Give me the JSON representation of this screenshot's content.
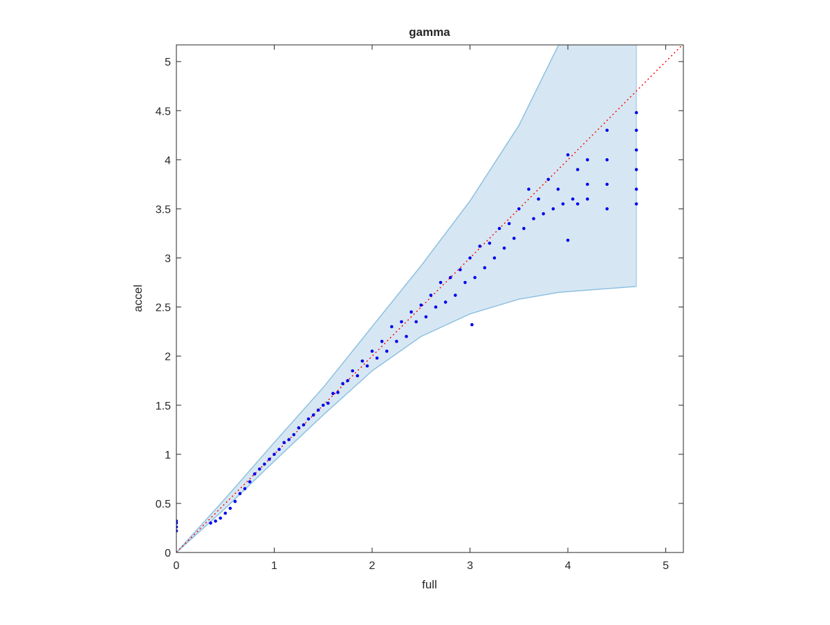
{
  "chart_data": {
    "type": "scatter",
    "title": "gamma",
    "x_label": "full",
    "y_label": "accel",
    "xlim": [
      0,
      5.18
    ],
    "ylim": [
      0,
      5.17
    ],
    "xticks": [
      0,
      1,
      2,
      3,
      4,
      5
    ],
    "yticks": [
      0,
      0.5,
      1,
      1.5,
      2,
      2.5,
      3,
      3.5,
      4,
      4.5,
      5
    ],
    "grid": false,
    "band": {
      "color": "#d6e7f3",
      "edge_color": "#8ec0e0",
      "x": [
        0,
        0.5,
        1,
        1.5,
        2,
        2.5,
        3,
        3.5,
        3.91,
        4.7
      ],
      "upper": [
        0,
        0.55,
        1.12,
        1.68,
        2.3,
        2.92,
        3.58,
        4.35,
        5.18,
        5.18
      ],
      "lower": [
        0,
        0.45,
        0.93,
        1.4,
        1.85,
        2.2,
        2.43,
        2.58,
        2.65,
        2.71
      ]
    },
    "reference_line": {
      "color": "#ff0000",
      "x": [
        0,
        5.18
      ],
      "y": [
        0,
        5.18
      ]
    },
    "series": [
      {
        "color": "#0000ee",
        "x": [
          0,
          0,
          0,
          0,
          0.35,
          0.4,
          0.45,
          0.5,
          0.55,
          0.6,
          0.65,
          0.7,
          0.75,
          0.8,
          0.85,
          0.9,
          0.95,
          1.0,
          1.05,
          1.1,
          1.15,
          1.2,
          1.25,
          1.3,
          1.35,
          1.4,
          1.45,
          1.5,
          1.55,
          1.6,
          1.65,
          1.7,
          1.75,
          1.8,
          1.85,
          1.9,
          1.95,
          2.0,
          2.05,
          2.1,
          2.15,
          2.2,
          2.25,
          2.3,
          2.35,
          2.4,
          2.45,
          2.5,
          2.55,
          2.6,
          2.65,
          2.7,
          2.75,
          2.8,
          2.85,
          2.9,
          2.95,
          3.0,
          3.02,
          3.05,
          3.1,
          3.15,
          3.2,
          3.25,
          3.3,
          3.35,
          3.4,
          3.45,
          3.5,
          3.55,
          3.6,
          3.65,
          3.7,
          3.75,
          3.8,
          3.85,
          3.9,
          3.95,
          4.0,
          4.0,
          4.05,
          4.1,
          4.1,
          4.2,
          4.2,
          4.2,
          4.4,
          4.4,
          4.4,
          4.4,
          4.7,
          4.7,
          4.7,
          4.7,
          4.7,
          4.7
        ],
        "y": [
          0.22,
          0.26,
          0.3,
          0.32,
          0.3,
          0.32,
          0.35,
          0.4,
          0.45,
          0.52,
          0.6,
          0.65,
          0.72,
          0.8,
          0.85,
          0.9,
          0.95,
          1.0,
          1.05,
          1.12,
          1.15,
          1.2,
          1.27,
          1.3,
          1.36,
          1.4,
          1.45,
          1.5,
          1.52,
          1.62,
          1.63,
          1.72,
          1.75,
          1.85,
          1.8,
          1.95,
          1.9,
          2.05,
          1.98,
          2.15,
          2.05,
          2.3,
          2.15,
          2.35,
          2.2,
          2.45,
          2.35,
          2.52,
          2.4,
          2.62,
          2.5,
          2.75,
          2.55,
          2.8,
          2.62,
          2.88,
          2.75,
          3.0,
          2.32,
          2.8,
          3.12,
          2.9,
          3.15,
          3.0,
          3.3,
          3.1,
          3.35,
          3.2,
          3.5,
          3.3,
          3.7,
          3.4,
          3.6,
          3.45,
          3.8,
          3.5,
          3.7,
          3.55,
          4.05,
          3.18,
          3.6,
          3.9,
          3.55,
          4.0,
          3.75,
          3.6,
          4.3,
          4.0,
          3.75,
          3.5,
          4.48,
          4.3,
          4.1,
          3.9,
          3.7,
          3.55
        ]
      }
    ]
  }
}
